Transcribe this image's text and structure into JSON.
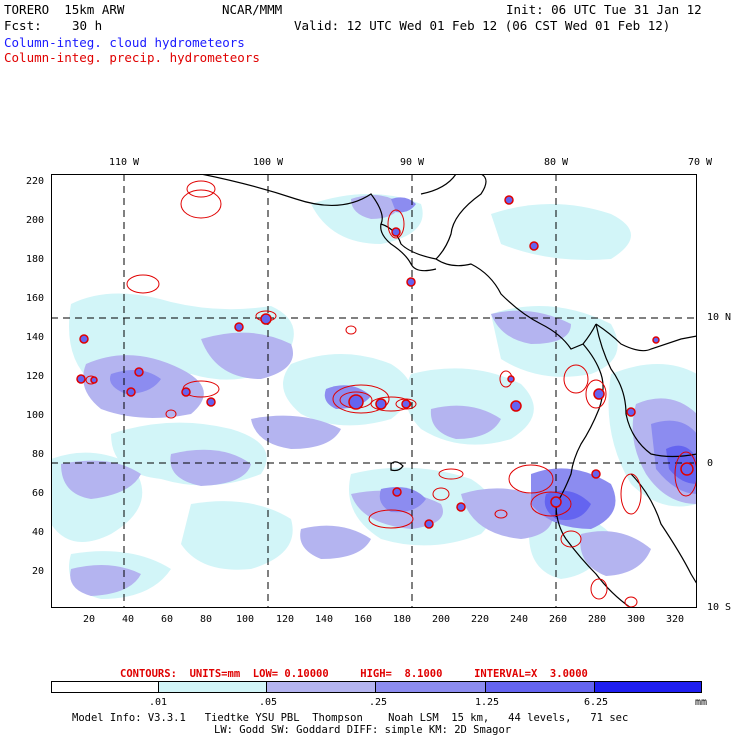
{
  "header": {
    "run_name": "TORERO  15km ARW",
    "org": "NCAR/MMM",
    "init": "Init: 06 UTC Tue 31 Jan 12",
    "fcst_label": "Fcst:",
    "fcst_value": "30 h",
    "valid": "Valid: 12 UTC Wed 01 Feb 12 (06 CST Wed 01 Feb 12)",
    "field1": "Column-integ. cloud hydrometeors",
    "field2": "Column-integ. precip. hydrometeors"
  },
  "axes": {
    "top_lon_labels": [
      "110 W",
      "100 W",
      "90 W",
      "80 W",
      "70 W"
    ],
    "right_lat_labels": [
      "10 N",
      "0",
      "10 S"
    ],
    "left_grid_labels": [
      "220",
      "200",
      "180",
      "160",
      "140",
      "120",
      "100",
      "80",
      "60",
      "40",
      "20"
    ],
    "bottom_grid_labels": [
      "20",
      "40",
      "60",
      "80",
      "100",
      "120",
      "140",
      "160",
      "180",
      "200",
      "220",
      "240",
      "260",
      "280",
      "300",
      "320"
    ]
  },
  "legend": {
    "contours_label": "CONTOURS:",
    "units_label": "UNITS=mm",
    "low": "LOW= 0.10000",
    "high": "HIGH=  8.1000",
    "interval": "INTERVAL=X  3.0000",
    "colorbar_ticks": [
      ".01",
      ".05",
      ".25",
      "1.25",
      "6.25"
    ],
    "colorbar_units": "mm",
    "colorbar_colors": [
      "#ffffff",
      "#d2f5f8",
      "#b4b4f0",
      "#8c8cf0",
      "#6464f0",
      "#1e1ef0"
    ]
  },
  "footer": {
    "line1": "Model Info: V3.3.1   Tiedtke YSU PBL  Thompson    Noah LSM  15 km,   44 levels,   71 sec",
    "line2": "LW: Godd SW: Goddard DIFF: simple KM: 2D Smagor"
  },
  "colors": {
    "cloud_light": "#d2f5f8",
    "cloud_mid": "#b4b4f0",
    "cloud_dark": "#8c8cf0",
    "cloud_darker": "#6464f0",
    "precip_contour": "#e00000"
  }
}
